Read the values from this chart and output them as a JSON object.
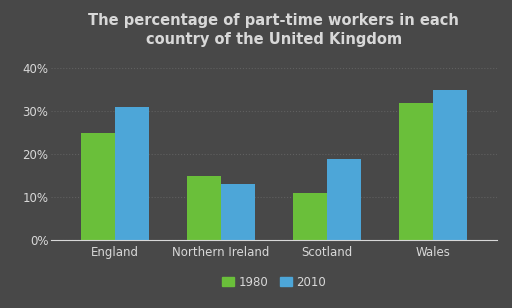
{
  "title": "The percentage of part-time workers in each\ncountry of the United Kingdom",
  "categories": [
    "England",
    "Northern Ireland",
    "Scotland",
    "Wales"
  ],
  "values_1980": [
    25,
    15,
    11,
    32
  ],
  "values_2010": [
    31,
    13,
    19,
    35
  ],
  "color_1980": "#6abf3a",
  "color_2010": "#4da6d8",
  "background_color": "#484848",
  "text_color": "#d8d8d8",
  "grid_color": "#606060",
  "ylim": [
    0,
    43
  ],
  "yticks": [
    0,
    10,
    20,
    30,
    40
  ],
  "ytick_labels": [
    "0%",
    "10%",
    "20%",
    "30%",
    "40%"
  ],
  "bar_width": 0.32,
  "title_fontsize": 10.5,
  "tick_fontsize": 8.5,
  "legend_fontsize": 8.5
}
